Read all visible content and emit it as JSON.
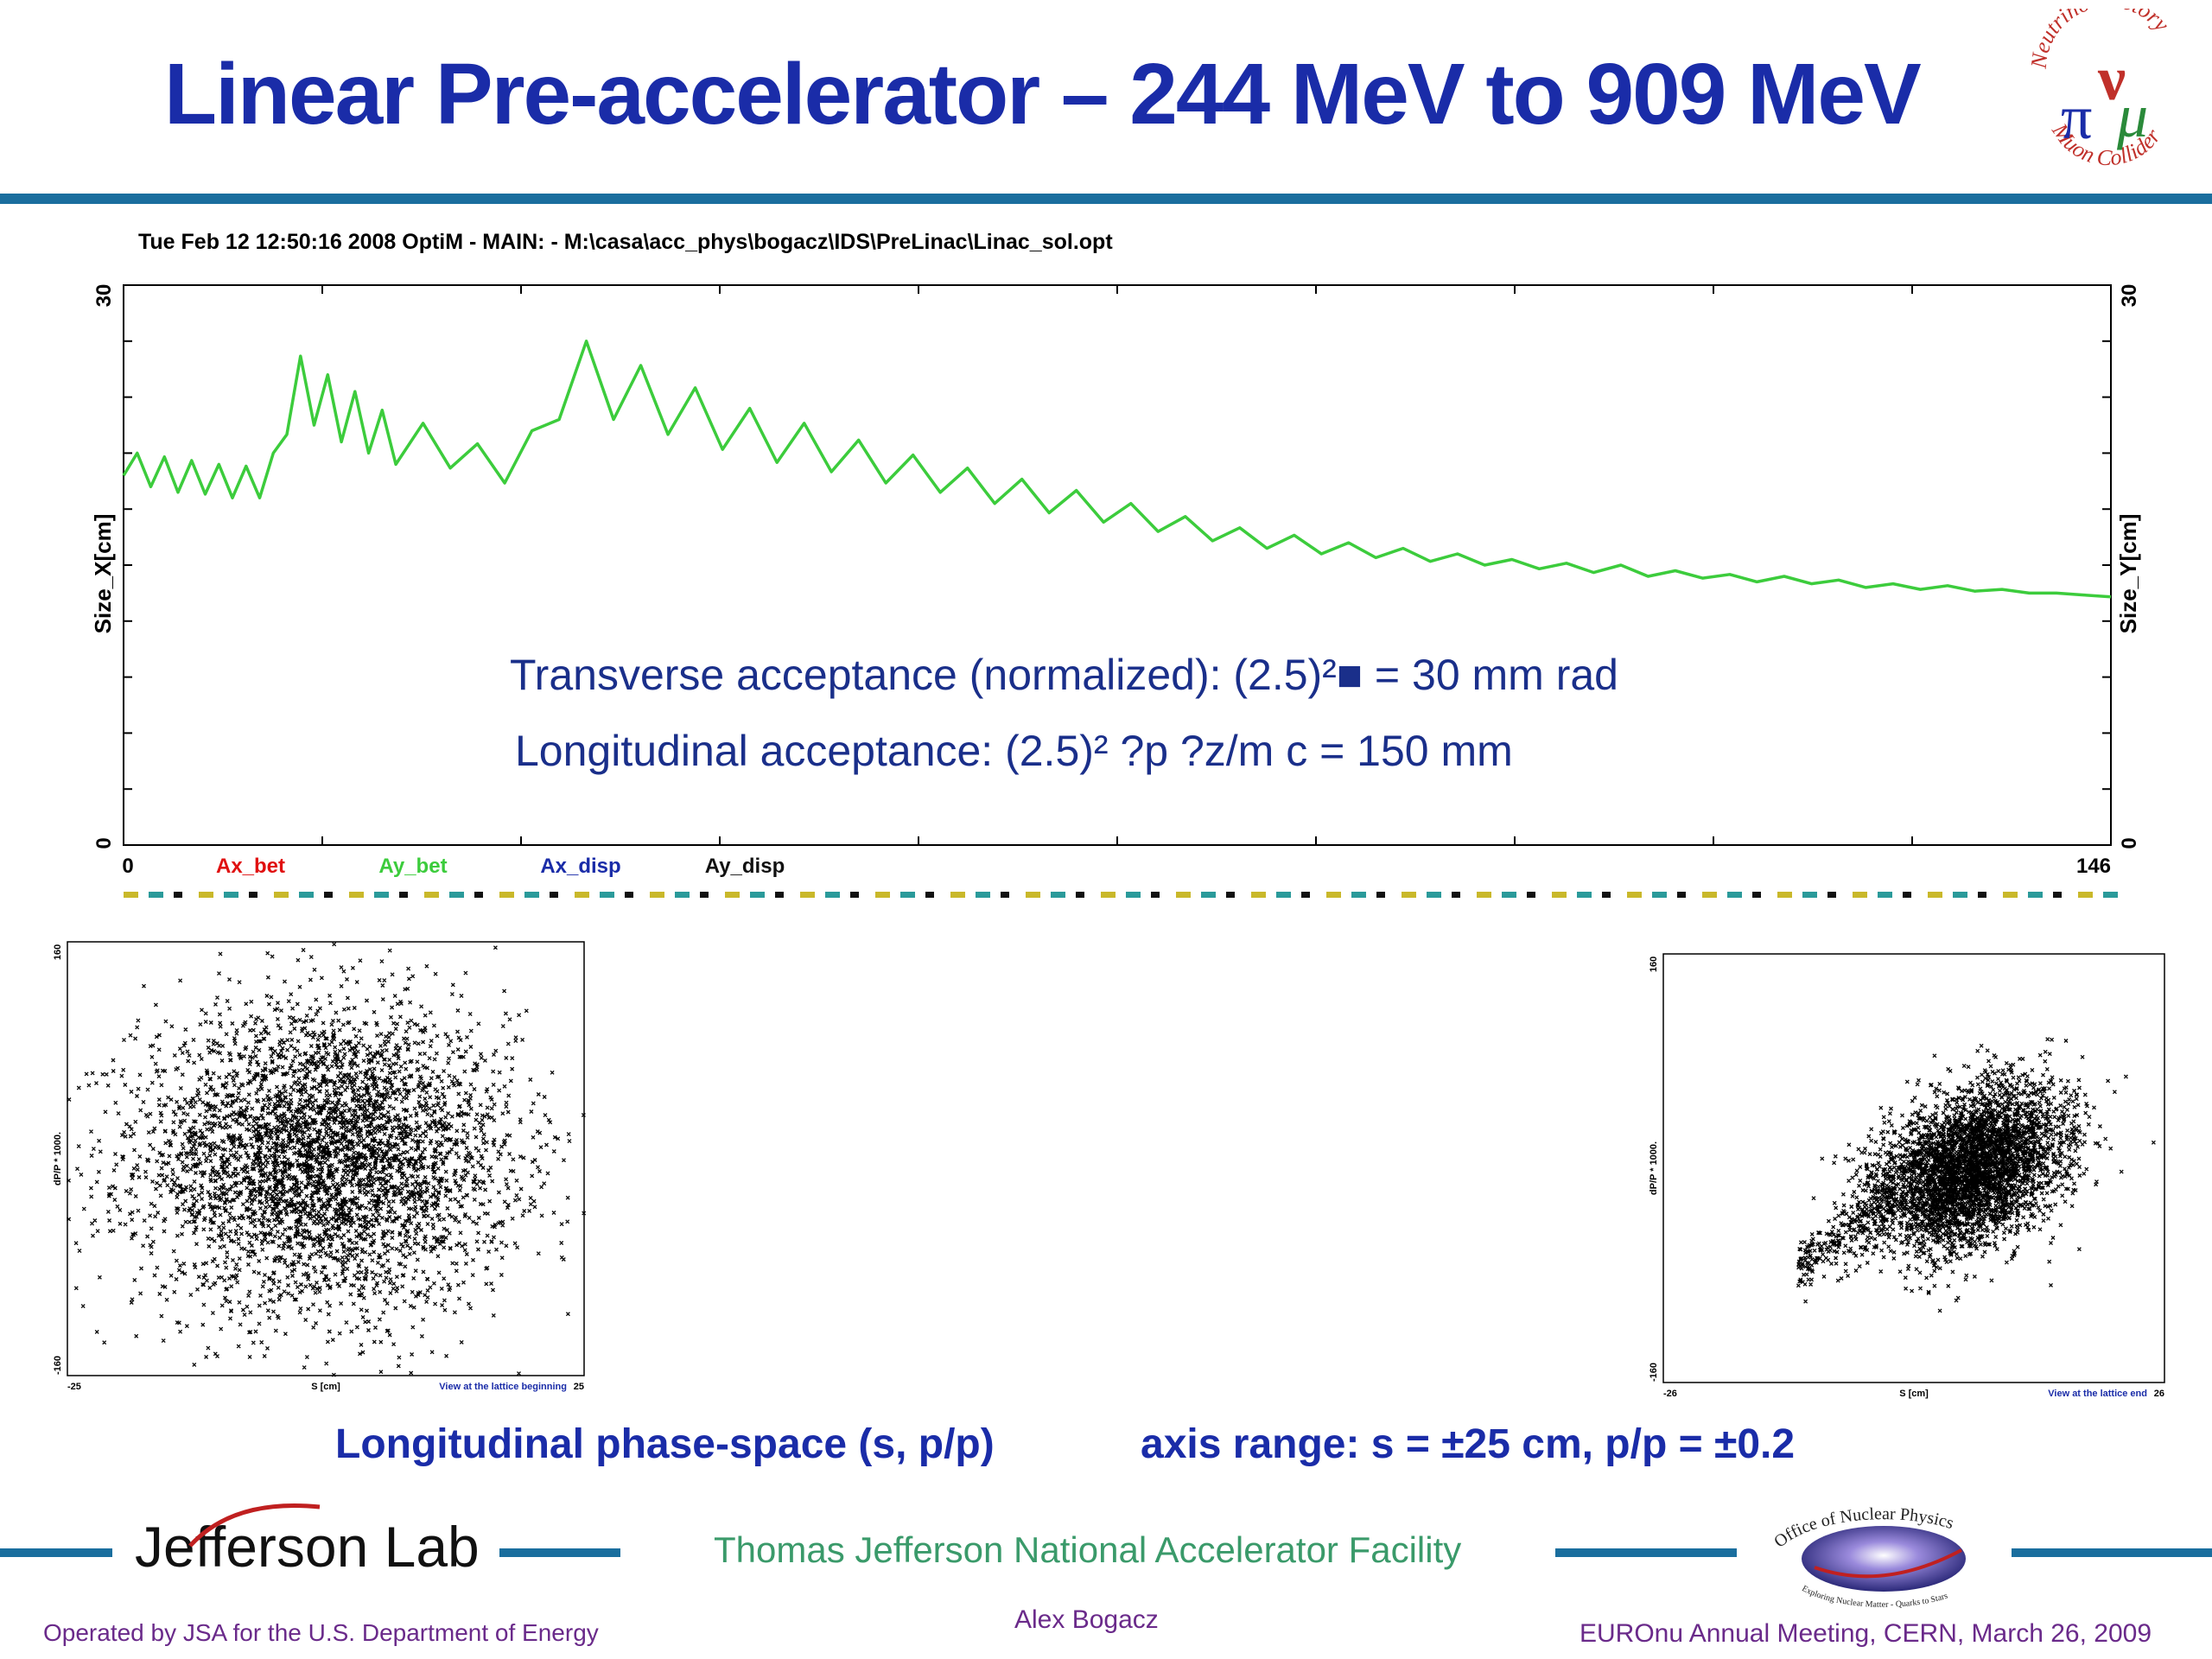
{
  "slide": {
    "title": "Linear Pre-accelerator – 244 MeV to 909 MeV",
    "logo_text_top": "Neutrino Factory",
    "logo_text_bottom": "Muon Collider",
    "logo_letters": [
      "ν",
      "π",
      "μ"
    ],
    "plot_header": "Tue Feb 12 12:50:16 2008    OptiM - MAIN: - M:\\casa\\acc_phys\\bogacz\\IDS\\PreLinac\\Linac_sol.opt",
    "acceptance_transverse": "Transverse acceptance (normalized): (2.5)²■ = 30 mm rad",
    "acceptance_longitudinal": "Longitudinal acceptance: (2.5)² ?p ?z/m c = 150 mm",
    "caption_left": "Longitudinal phase-space (s, p/p)",
    "caption_right": "axis range: s = ±25 cm, p/p = ±0.2",
    "footer": {
      "lab_name": "Jefferson Lab",
      "facility": "Thomas Jefferson National Accelerator Facility",
      "operated_by": "Operated by JSA for the U.S. Department of Energy",
      "author": "Alex Bogacz",
      "meeting": "EUROnu Annual Meeting, CERN, March 26, 2009",
      "doe_logo_text": "Office of Nuclear Physics",
      "doe_logo_subtext": "Exploring Nuclear Matter - Quarks to Stars"
    }
  },
  "chart_data": [
    {
      "type": "line",
      "xlim": [
        0,
        146
      ],
      "ylim": [
        0,
        30
      ],
      "x_tick_labels": [
        "0",
        "146"
      ],
      "ylabel_left": "Size_X[cm]",
      "ylabel_right": "Size_Y[cm]",
      "y_tick_labels_left": [
        "0",
        "30"
      ],
      "y_tick_labels_right": [
        "0",
        "30"
      ],
      "legend": [
        "Ax_bet",
        "Ay_bet",
        "Ax_disp",
        "Ay_disp"
      ],
      "legend_colors": [
        "#e01010",
        "#3ccc3c",
        "#1a2ca8",
        "#111111"
      ],
      "series": [
        {
          "name": "Ay_bet",
          "color": "#3ccc3c",
          "x": [
            0,
            1,
            2,
            3,
            4,
            5,
            6,
            7,
            8,
            9,
            10,
            11,
            12,
            13,
            14,
            15,
            16,
            17,
            18,
            19,
            20,
            22,
            24,
            26,
            28,
            30,
            32,
            34,
            36,
            38,
            40,
            42,
            44,
            46,
            48,
            50,
            52,
            54,
            56,
            58,
            60,
            62,
            64,
            66,
            68,
            70,
            72,
            74,
            76,
            78,
            80,
            82,
            84,
            86,
            88,
            90,
            92,
            94,
            96,
            98,
            100,
            102,
            104,
            106,
            108,
            110,
            112,
            114,
            116,
            118,
            120,
            122,
            124,
            126,
            128,
            130,
            132,
            134,
            136,
            138,
            140,
            142,
            144,
            146
          ],
          "values": [
            19.8,
            21.0,
            19.2,
            20.8,
            18.9,
            20.6,
            18.8,
            20.4,
            18.6,
            20.3,
            18.6,
            21.0,
            22.0,
            26.2,
            22.5,
            25.2,
            21.6,
            24.3,
            21.0,
            23.3,
            20.4,
            22.6,
            20.2,
            21.5,
            19.4,
            22.2,
            22.8,
            27.0,
            22.8,
            25.7,
            22.0,
            24.5,
            21.2,
            23.4,
            20.5,
            22.6,
            20.0,
            21.7,
            19.4,
            20.9,
            18.9,
            20.2,
            18.3,
            19.6,
            17.8,
            19.0,
            17.3,
            18.3,
            16.8,
            17.6,
            16.3,
            17.0,
            15.9,
            16.6,
            15.6,
            16.2,
            15.4,
            15.9,
            15.2,
            15.6,
            15.0,
            15.3,
            14.8,
            15.1,
            14.6,
            15.0,
            14.4,
            14.7,
            14.3,
            14.5,
            14.1,
            14.4,
            14.0,
            14.2,
            13.8,
            14.0,
            13.7,
            13.9,
            13.6,
            13.7,
            13.5,
            13.5,
            13.4,
            13.3
          ]
        }
      ]
    },
    {
      "type": "scatter",
      "name": "lattice beginning",
      "xlabel": "S [cm]",
      "ylabel": "dP/P * 1000.",
      "xlim": [
        -25,
        25
      ],
      "ylim": [
        -160,
        160
      ],
      "x_tick_labels": [
        "-25",
        "25"
      ],
      "y_tick_labels": [
        "-160",
        "160"
      ],
      "note": "View at the lattice beginning",
      "distribution": {
        "x_center": 0,
        "x_spread": 9,
        "y_center": 0,
        "y_spread": 55,
        "points": 4200,
        "shape": "round cloud"
      }
    },
    {
      "type": "scatter",
      "name": "lattice end",
      "xlabel": "S [cm]",
      "ylabel": "dP/P * 1000.",
      "xlim": [
        -26,
        26
      ],
      "ylim": [
        -160,
        160
      ],
      "x_tick_labels": [
        "-26",
        "26"
      ],
      "y_tick_labels": [
        "-160",
        "160"
      ],
      "note": "View at the lattice end",
      "distribution": {
        "x_center": 6,
        "x_spread": 5,
        "y_center": 0,
        "y_spread": 28,
        "points": 4200,
        "shape": "tilted teardrop"
      }
    }
  ],
  "lattice_strip": {
    "colors": [
      "#c9b82a",
      "#2a9a9a",
      "#111111"
    ]
  },
  "colors": {
    "title": "#1a2ca8",
    "rule": "#1a6e9e",
    "footer_text": "#6a2a8a",
    "facility_text": "#3a9a6a"
  }
}
